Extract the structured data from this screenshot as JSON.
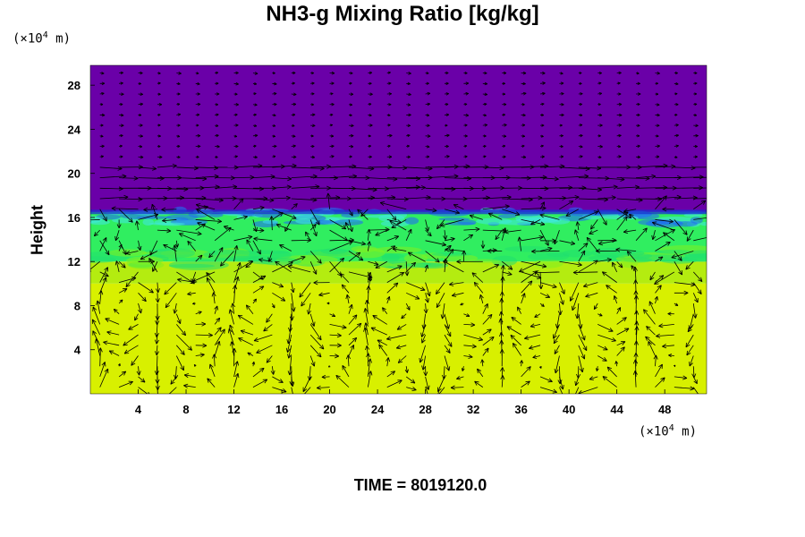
{
  "chart_data": {
    "type": "heatmap",
    "title": "NH3-g Mixing Ratio [kg/kg]",
    "ylabel": "Height",
    "x_unit": "(×10",
    "x_unit_exp": "4",
    "x_unit_tail": " m)",
    "y_unit": "(×10",
    "y_unit_exp": "4",
    "y_unit_tail": " m)",
    "xlim": [
      0,
      51.5
    ],
    "ylim": [
      0,
      29.8
    ],
    "x_ticks": [
      4,
      8,
      12,
      16,
      20,
      24,
      28,
      32,
      36,
      40,
      44,
      48
    ],
    "y_ticks": [
      4,
      8,
      12,
      16,
      20,
      24,
      28
    ],
    "overlay": "wind vector arrows",
    "layers": [
      {
        "name": "lower",
        "y_range": [
          0,
          10
        ],
        "color": "#d8f000"
      },
      {
        "name": "transition",
        "y_range": [
          10,
          12
        ],
        "color": "#b4ec10"
      },
      {
        "name": "mid",
        "y_range": [
          12,
          16.5
        ],
        "color": "#30ee60"
      },
      {
        "name": "upper",
        "y_range": [
          16.5,
          29.8
        ],
        "color": "#6a00a8"
      }
    ]
  },
  "footer": {
    "time_label": "TIME = 8019120.0"
  }
}
